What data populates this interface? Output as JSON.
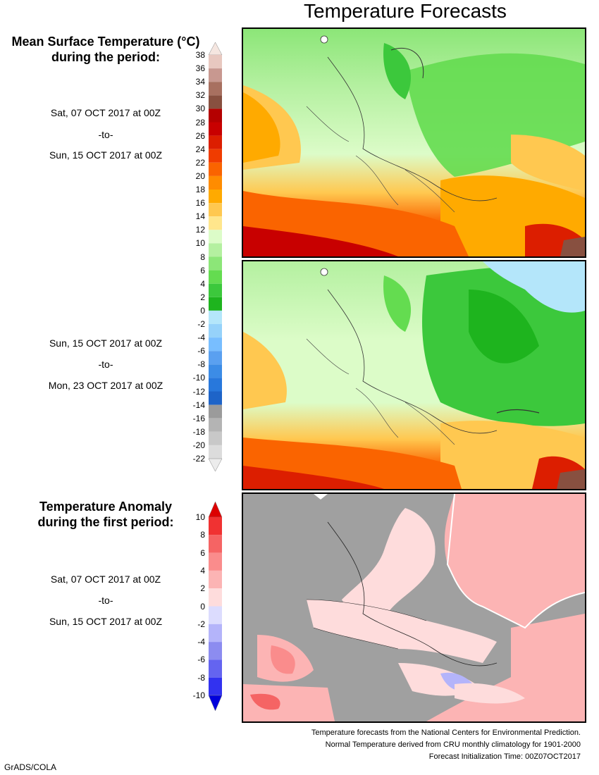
{
  "header": {
    "title": "Temperature Forecasts"
  },
  "panel1": {
    "heading_line1": "Mean Surface Temperature (°C)",
    "heading_line2": "during the period:",
    "from": "Sat, 07 OCT 2017 at 00Z",
    "sep": "-to-",
    "to": "Sun, 15 OCT 2017 at 00Z"
  },
  "panel2": {
    "from": "Sun, 15 OCT 2017 at 00Z",
    "sep": "-to-",
    "to": "Mon, 23 OCT 2017 at 00Z"
  },
  "panel3": {
    "heading_line1": "Temperature Anomaly",
    "heading_line2": "during the first period:",
    "from": "Sat, 07 OCT 2017 at 00Z",
    "sep": "-to-",
    "to": "Sun, 15 OCT 2017 at 00Z"
  },
  "temp_scale": {
    "ticks": [
      "38",
      "36",
      "34",
      "32",
      "30",
      "28",
      "26",
      "24",
      "22",
      "20",
      "18",
      "16",
      "14",
      "12",
      "10",
      "8",
      "6",
      "4",
      "2",
      "0",
      "-2",
      "-4",
      "-6",
      "-8",
      "-10",
      "-12",
      "-14",
      "-16",
      "-18",
      "-20",
      "-22"
    ],
    "colors": [
      "#e8c8c0",
      "#c89890",
      "#a87060",
      "#885040",
      "#b40000",
      "#c80000",
      "#dc1e00",
      "#f03c00",
      "#fa6400",
      "#ff8c00",
      "#ffaa00",
      "#ffc850",
      "#ffe68c",
      "#dcfcc8",
      "#b4f0a0",
      "#8ce678",
      "#64dc50",
      "#3cc83c",
      "#1eb41e",
      "#b4e6fa",
      "#96d2fa",
      "#78beff",
      "#5aa0f0",
      "#3c8ce6",
      "#2878dc",
      "#1e64c8",
      "#9b9b9b",
      "#b4b4b4",
      "#c8c8c8",
      "#dcdcdc"
    ]
  },
  "anom_scale": {
    "ticks": [
      "10",
      "8",
      "6",
      "4",
      "2",
      "0",
      "-2",
      "-4",
      "-6",
      "-8",
      "-10"
    ],
    "colors": [
      "#f03232",
      "#f56464",
      "#fa8c8c",
      "#fcb4b4",
      "#fedcdc",
      "#dcdcfe",
      "#b4b4fa",
      "#8c8cf0",
      "#6464f0",
      "#3232f0"
    ],
    "top_color": "#dc0000",
    "bottom_color": "#0000dc"
  },
  "footer": {
    "line1": "Temperature forecasts from the National Centers for Environmental Prediction.",
    "line2": "Normal Temperature derived from CRU monthly climatology for 1901-2000",
    "line3": "Forecast Initialization Time: 00Z07OCT2017"
  },
  "credit": "GrADS/COLA"
}
